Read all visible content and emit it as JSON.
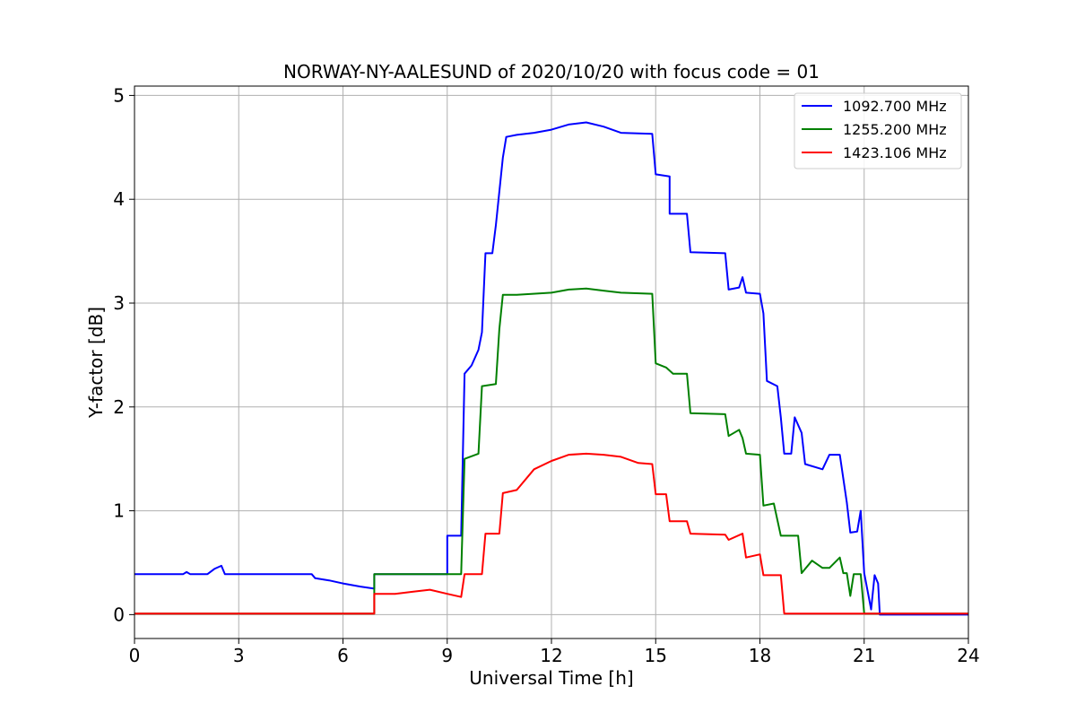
{
  "chart_data": {
    "type": "line",
    "title": "NORWAY-NY-AALESUND of 2020/10/20 with focus code = 01",
    "xlabel": "Universal Time [h]",
    "ylabel": "Y-factor [dB]",
    "xlim": [
      0,
      24
    ],
    "ylim": [
      -0.23,
      5.09
    ],
    "xticks": [
      0,
      3,
      6,
      9,
      12,
      15,
      18,
      21,
      24
    ],
    "yticks": [
      0,
      1,
      2,
      3,
      4,
      5
    ],
    "grid": true,
    "legend_position": "top-right",
    "series": [
      {
        "name": "1092.700 MHz",
        "color": "#0000ff",
        "points": [
          [
            0,
            0.39
          ],
          [
            1.4,
            0.39
          ],
          [
            1.5,
            0.41
          ],
          [
            1.6,
            0.39
          ],
          [
            2.1,
            0.39
          ],
          [
            2.3,
            0.44
          ],
          [
            2.5,
            0.47
          ],
          [
            2.6,
            0.39
          ],
          [
            5.1,
            0.39
          ],
          [
            5.2,
            0.35
          ],
          [
            5.6,
            0.33
          ],
          [
            6.0,
            0.3
          ],
          [
            6.5,
            0.27
          ],
          [
            6.9,
            0.25
          ],
          [
            6.9,
            0.39
          ],
          [
            9.0,
            0.39
          ],
          [
            9.0,
            0.76
          ],
          [
            9.4,
            0.76
          ],
          [
            9.5,
            2.32
          ],
          [
            9.7,
            2.4
          ],
          [
            9.9,
            2.55
          ],
          [
            10.0,
            2.72
          ],
          [
            10.1,
            3.48
          ],
          [
            10.3,
            3.48
          ],
          [
            10.4,
            3.75
          ],
          [
            10.6,
            4.4
          ],
          [
            10.7,
            4.6
          ],
          [
            11.0,
            4.62
          ],
          [
            11.5,
            4.64
          ],
          [
            12.0,
            4.67
          ],
          [
            12.5,
            4.72
          ],
          [
            13.0,
            4.74
          ],
          [
            13.5,
            4.7
          ],
          [
            14.0,
            4.64
          ],
          [
            14.9,
            4.63
          ],
          [
            15.0,
            4.24
          ],
          [
            15.4,
            4.22
          ],
          [
            15.4,
            3.86
          ],
          [
            15.9,
            3.86
          ],
          [
            16.0,
            3.49
          ],
          [
            17.0,
            3.48
          ],
          [
            17.1,
            3.13
          ],
          [
            17.4,
            3.15
          ],
          [
            17.5,
            3.25
          ],
          [
            17.6,
            3.1
          ],
          [
            18.0,
            3.09
          ],
          [
            18.1,
            2.9
          ],
          [
            18.2,
            2.25
          ],
          [
            18.5,
            2.2
          ],
          [
            18.6,
            1.9
          ],
          [
            18.7,
            1.55
          ],
          [
            18.9,
            1.55
          ],
          [
            19.0,
            1.9
          ],
          [
            19.2,
            1.75
          ],
          [
            19.3,
            1.45
          ],
          [
            19.8,
            1.4
          ],
          [
            20.0,
            1.54
          ],
          [
            20.3,
            1.54
          ],
          [
            20.5,
            1.08
          ],
          [
            20.6,
            0.79
          ],
          [
            20.8,
            0.8
          ],
          [
            20.9,
            1.0
          ],
          [
            21.0,
            0.4
          ],
          [
            21.2,
            0.05
          ],
          [
            21.3,
            0.38
          ],
          [
            21.4,
            0.3
          ],
          [
            21.45,
            0.0
          ],
          [
            24,
            0.0
          ]
        ]
      },
      {
        "name": "1255.200 MHz",
        "color": "#008000",
        "points": [
          [
            0,
            0.01
          ],
          [
            6.9,
            0.01
          ],
          [
            6.9,
            0.39
          ],
          [
            9.4,
            0.39
          ],
          [
            9.5,
            1.5
          ],
          [
            9.9,
            1.55
          ],
          [
            10.0,
            2.2
          ],
          [
            10.4,
            2.22
          ],
          [
            10.5,
            2.75
          ],
          [
            10.6,
            3.08
          ],
          [
            11.0,
            3.08
          ],
          [
            12.0,
            3.1
          ],
          [
            12.5,
            3.13
          ],
          [
            13.0,
            3.14
          ],
          [
            13.5,
            3.12
          ],
          [
            14.0,
            3.1
          ],
          [
            14.9,
            3.09
          ],
          [
            15.0,
            2.42
          ],
          [
            15.3,
            2.38
          ],
          [
            15.5,
            2.32
          ],
          [
            15.9,
            2.32
          ],
          [
            16.0,
            1.94
          ],
          [
            17.0,
            1.93
          ],
          [
            17.1,
            1.72
          ],
          [
            17.4,
            1.78
          ],
          [
            17.5,
            1.7
          ],
          [
            17.6,
            1.55
          ],
          [
            18.0,
            1.54
          ],
          [
            18.1,
            1.05
          ],
          [
            18.4,
            1.07
          ],
          [
            18.6,
            0.76
          ],
          [
            19.1,
            0.76
          ],
          [
            19.2,
            0.4
          ],
          [
            19.5,
            0.52
          ],
          [
            19.8,
            0.45
          ],
          [
            20.0,
            0.45
          ],
          [
            20.3,
            0.55
          ],
          [
            20.4,
            0.4
          ],
          [
            20.5,
            0.4
          ],
          [
            20.6,
            0.18
          ],
          [
            20.7,
            0.39
          ],
          [
            20.9,
            0.39
          ],
          [
            21.0,
            0.01
          ],
          [
            24,
            0.01
          ]
        ]
      },
      {
        "name": "1423.106 MHz",
        "color": "#ff0000",
        "points": [
          [
            0,
            0.01
          ],
          [
            6.9,
            0.01
          ],
          [
            6.9,
            0.2
          ],
          [
            7.5,
            0.2
          ],
          [
            8.0,
            0.22
          ],
          [
            8.5,
            0.24
          ],
          [
            9.0,
            0.2
          ],
          [
            9.4,
            0.17
          ],
          [
            9.5,
            0.39
          ],
          [
            10.0,
            0.39
          ],
          [
            10.1,
            0.78
          ],
          [
            10.5,
            0.78
          ],
          [
            10.6,
            1.17
          ],
          [
            11.0,
            1.2
          ],
          [
            11.5,
            1.4
          ],
          [
            12.0,
            1.48
          ],
          [
            12.5,
            1.54
          ],
          [
            13.0,
            1.55
          ],
          [
            13.5,
            1.54
          ],
          [
            14.0,
            1.52
          ],
          [
            14.5,
            1.46
          ],
          [
            14.9,
            1.45
          ],
          [
            15.0,
            1.16
          ],
          [
            15.3,
            1.16
          ],
          [
            15.4,
            0.9
          ],
          [
            15.9,
            0.9
          ],
          [
            16.0,
            0.78
          ],
          [
            17.0,
            0.77
          ],
          [
            17.1,
            0.72
          ],
          [
            17.5,
            0.78
          ],
          [
            17.6,
            0.55
          ],
          [
            18.0,
            0.58
          ],
          [
            18.1,
            0.38
          ],
          [
            18.6,
            0.38
          ],
          [
            18.7,
            0.01
          ],
          [
            24,
            0.01
          ]
        ]
      }
    ]
  }
}
